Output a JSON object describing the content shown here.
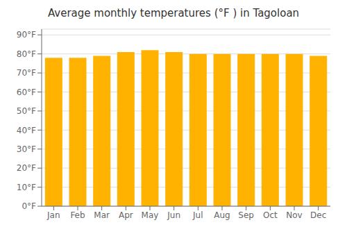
{
  "chart_data": {
    "type": "bar",
    "title": "Average monthly temperatures (°F ) in Tagoloan",
    "categories": [
      "Jan",
      "Feb",
      "Mar",
      "Apr",
      "May",
      "Jun",
      "Jul",
      "Aug",
      "Sep",
      "Oct",
      "Nov",
      "Dec"
    ],
    "values": [
      78,
      78,
      79,
      81,
      82,
      81,
      80,
      80,
      80,
      80,
      80,
      79
    ],
    "color": "#FFB300",
    "ylim": [
      0,
      93
    ],
    "yticks": [
      {
        "value": 0,
        "label": "0°F"
      },
      {
        "value": 10,
        "label": "10°F"
      },
      {
        "value": 20,
        "label": "20°F"
      },
      {
        "value": 30,
        "label": "30°F"
      },
      {
        "value": 40,
        "label": "40°F"
      },
      {
        "value": 50,
        "label": "50°F"
      },
      {
        "value": 60,
        "label": "60°F"
      },
      {
        "value": 70,
        "label": "70°F"
      },
      {
        "value": 80,
        "label": "80°F"
      },
      {
        "value": 90,
        "label": "90°F"
      }
    ],
    "grid": true
  }
}
